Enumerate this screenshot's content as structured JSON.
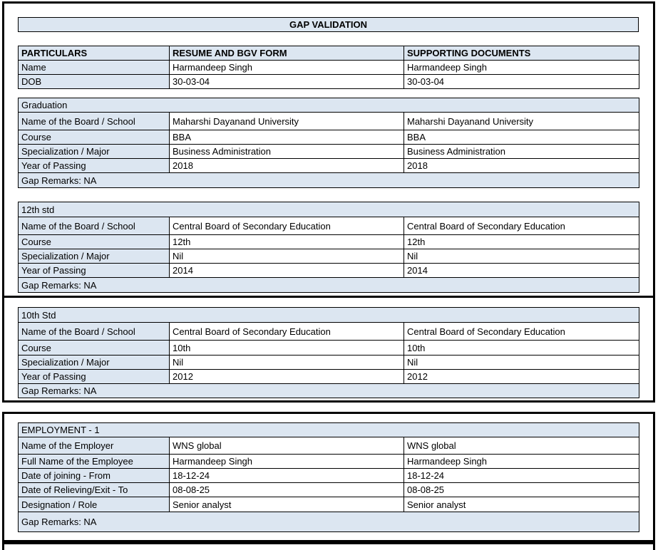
{
  "title": "GAP VALIDATION",
  "colors": {
    "header_fill": "#dce6f1",
    "border": "#000000"
  },
  "particulars": {
    "headers": [
      "PARTICULARS",
      "RESUME AND BGV FORM",
      "SUPPORTING DOCUMENTS"
    ],
    "rows": [
      {
        "label": "Name",
        "resume": "Harmandeep Singh",
        "supporting": "Harmandeep Singh"
      },
      {
        "label": "DOB",
        "resume": "30-03-04",
        "supporting": "30-03-04"
      }
    ]
  },
  "sections": [
    {
      "title": "Graduation",
      "rows": [
        {
          "label": "Name of the Board / School",
          "resume": "Maharshi Dayanand University",
          "supporting": "Maharshi Dayanand University"
        },
        {
          "label": "Course",
          "resume": "BBA",
          "supporting": "BBA"
        },
        {
          "label": "Specialization / Major",
          "resume": "Business Administration",
          "supporting": "Business Administration"
        },
        {
          "label": "Year of Passing",
          "resume": "2018",
          "supporting": "2018"
        }
      ],
      "gap_remarks": "Gap Remarks: NA"
    },
    {
      "title": "12th std",
      "rows": [
        {
          "label": "Name of the Board / School",
          "resume": "Central Board of Secondary Education",
          "supporting": "Central Board of Secondary Education"
        },
        {
          "label": "Course",
          "resume": "12th",
          "supporting": "12th"
        },
        {
          "label": "Specialization / Major",
          "resume": "Nil",
          "supporting": "Nil"
        },
        {
          "label": "Year of Passing",
          "resume": "2014",
          "supporting": "2014"
        }
      ],
      "gap_remarks": "Gap Remarks: NA"
    },
    {
      "title": "10th Std",
      "rows": [
        {
          "label": "Name of the Board / School",
          "resume": "Central Board of Secondary Education",
          "supporting": "Central Board of Secondary Education"
        },
        {
          "label": "Course",
          "resume": "10th",
          "supporting": "10th"
        },
        {
          "label": "Specialization / Major",
          "resume": "Nil",
          "supporting": "Nil"
        },
        {
          "label": "Year of Passing",
          "resume": "2012",
          "supporting": "2012"
        }
      ],
      "gap_remarks": "Gap Remarks: NA"
    },
    {
      "title": "EMPLOYMENT - 1",
      "rows": [
        {
          "label": "Name of the Employer",
          "resume": "WNS global",
          "supporting": "WNS global"
        },
        {
          "label": "Full Name of the Employee",
          "resume": "Harmandeep Singh",
          "supporting": "Harmandeep Singh"
        },
        {
          "label": "Date of joining - From",
          "resume": "18-12-24",
          "supporting": "18-12-24"
        },
        {
          "label": "Date of Relieving/Exit - To",
          "resume": "08-08-25",
          "supporting": "08-08-25"
        },
        {
          "label": "Designation / Role",
          "resume": "Senior analyst",
          "supporting": "Senior analyst"
        }
      ],
      "gap_remarks": "Gap Remarks: NA"
    }
  ]
}
